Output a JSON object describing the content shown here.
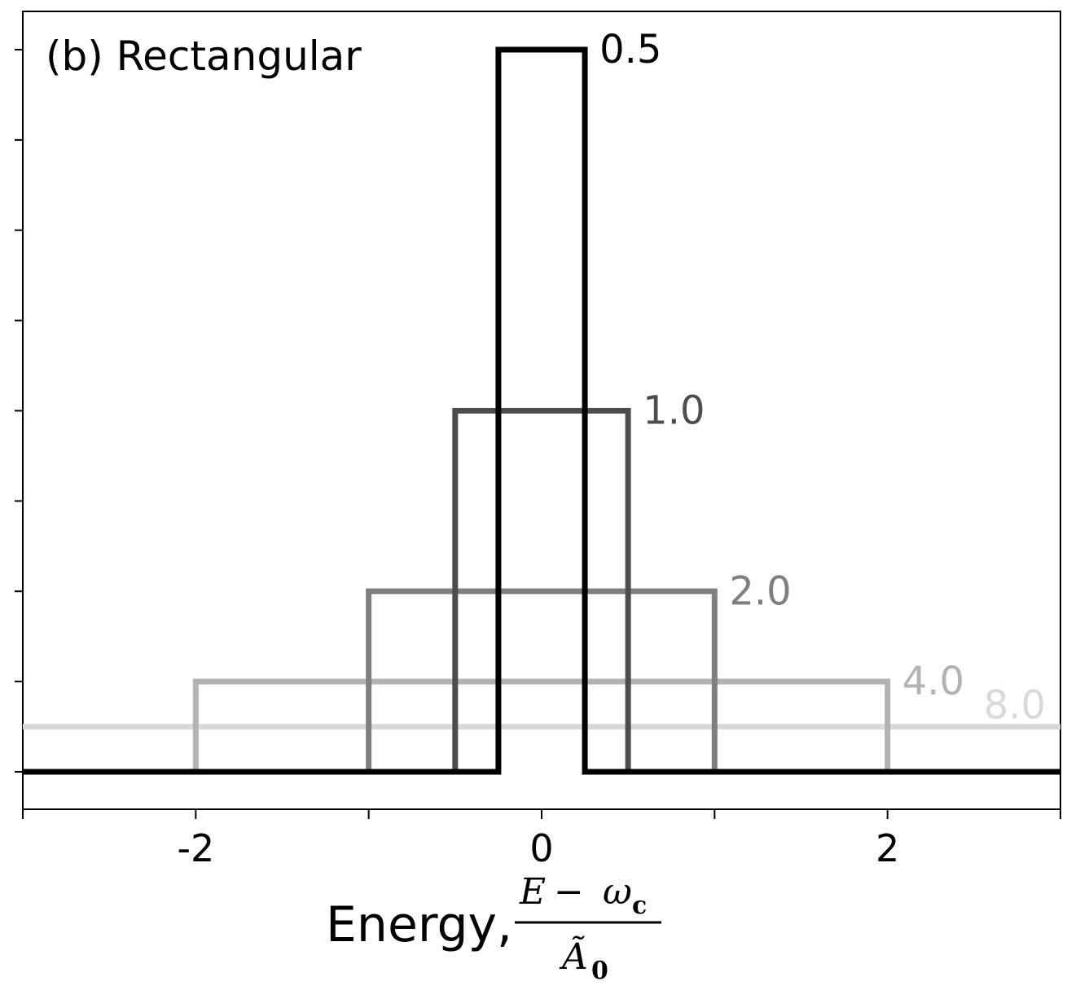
{
  "chart_data": {
    "type": "line",
    "title": "(b) Rectangular",
    "xlabel": {
      "prefix": "Energy,",
      "numerator_var": "E",
      "numerator_op": "−",
      "numerator_sym": "ω",
      "numerator_sub": "c",
      "denominator_sym": "Ã",
      "denominator_sub": "0"
    },
    "ylabel": "",
    "xlim": [
      -3,
      3
    ],
    "ylim": [
      -0.42,
      8.0
    ],
    "x_ticks": [
      -2,
      0,
      2
    ],
    "x_tick_labels": [
      "-2",
      "0",
      "2"
    ],
    "x_minor_ticks": [
      -3,
      -1,
      1,
      3
    ],
    "y_ticks": [
      0,
      1,
      2,
      3,
      4,
      5,
      6,
      7,
      8
    ],
    "grid": false,
    "legend": "inline labels",
    "series": [
      {
        "name": "8.0",
        "width": 8.0,
        "height": 0.5,
        "color": "#d9d9d9"
      },
      {
        "name": "4.0",
        "width": 4.0,
        "height": 1.0,
        "color": "#b3b3b3"
      },
      {
        "name": "2.0",
        "width": 2.0,
        "height": 2.0,
        "color": "#7f7f7f"
      },
      {
        "name": "1.0",
        "width": 1.0,
        "height": 4.0,
        "color": "#4d4d4d"
      },
      {
        "name": "0.5",
        "width": 0.5,
        "height": 8.0,
        "color": "#000000"
      }
    ]
  }
}
